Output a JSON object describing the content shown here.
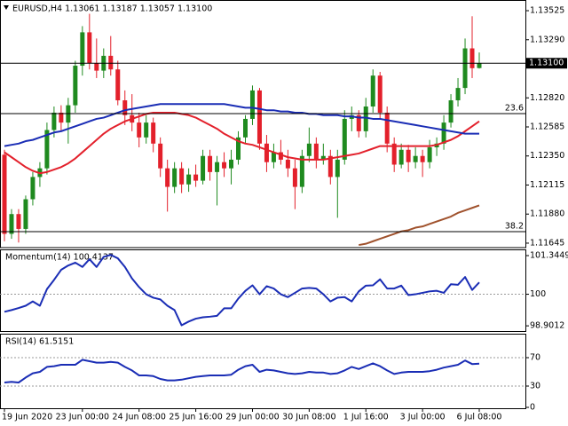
{
  "chart_data": [
    {
      "type": "candlestick",
      "title": "EURUSD,H4  1.13061 1.13187 1.13057 1.13100",
      "categories": [
        "19 Jun 2020",
        null,
        null,
        null,
        null,
        null,
        null,
        null,
        null,
        null,
        null,
        "23 Jun 00:00",
        null,
        null,
        null,
        null,
        null,
        null,
        null,
        "24 Jun 08:00",
        null,
        null,
        null,
        null,
        null,
        null,
        null,
        "25 Jun 16:00",
        null,
        null,
        null,
        null,
        null,
        null,
        null,
        "29 Jun 00:00",
        null,
        null,
        null,
        null,
        null,
        null,
        null,
        "30 Jun 08:00",
        null,
        null,
        null,
        null,
        null,
        null,
        null,
        "1 Jul 16:00",
        null,
        null,
        null,
        null,
        null,
        null,
        null,
        "3 Jul 00:00",
        null,
        null,
        null,
        null,
        null,
        null,
        null,
        "6 Jul 08:00"
      ],
      "open": [
        1.1236,
        1.1172,
        1.1188,
        1.1176,
        1.12,
        1.1218,
        1.1225,
        1.1256,
        1.127,
        1.1262,
        1.1276,
        1.1308,
        1.1335,
        1.131,
        1.1304,
        1.1316,
        1.1305,
        1.128,
        1.1268,
        1.1262,
        1.125,
        1.1262,
        1.1245,
        1.1225,
        1.121,
        1.1225,
        1.1212,
        1.122,
        1.1215,
        1.1235,
        1.1222,
        1.123,
        1.1225,
        1.1232,
        1.125,
        1.1265,
        1.1288,
        1.1245,
        1.123,
        1.1238,
        1.1232,
        1.1225,
        1.121,
        1.1235,
        1.1245,
        1.1232,
        1.1235,
        1.1218,
        1.1232,
        1.1265,
        1.1268,
        1.1255,
        1.1275,
        1.13,
        1.127,
        1.1245,
        1.1228,
        1.124,
        1.123,
        1.1235,
        1.123,
        1.1242,
        1.1245,
        1.1262,
        1.128,
        1.129,
        1.1322,
        1.13061
      ],
      "high": [
        1.124,
        1.1192,
        1.1192,
        1.1203,
        1.1222,
        1.123,
        1.1262,
        1.1275,
        1.1276,
        1.1282,
        1.1312,
        1.134,
        1.135,
        1.133,
        1.1322,
        1.1332,
        1.1312,
        1.1288,
        1.1285,
        1.127,
        1.1268,
        1.1266,
        1.125,
        1.1232,
        1.123,
        1.123,
        1.1225,
        1.1228,
        1.124,
        1.124,
        1.1235,
        1.1238,
        1.124,
        1.1255,
        1.1268,
        1.1292,
        1.129,
        1.1252,
        1.1245,
        1.1248,
        1.124,
        1.1232,
        1.124,
        1.1258,
        1.125,
        1.1245,
        1.124,
        1.124,
        1.1272,
        1.1275,
        1.1272,
        1.1282,
        1.1305,
        1.1303,
        1.1275,
        1.125,
        1.1245,
        1.1244,
        1.1242,
        1.124,
        1.1248,
        1.125,
        1.1268,
        1.1285,
        1.1298,
        1.133,
        1.1348,
        1.13187
      ],
      "low": [
        1.1166,
        1.1168,
        1.1165,
        1.1172,
        1.1195,
        1.121,
        1.122,
        1.125,
        1.1255,
        1.1245,
        1.127,
        1.13,
        1.1305,
        1.1298,
        1.1298,
        1.13,
        1.1276,
        1.126,
        1.1255,
        1.1242,
        1.1245,
        1.1238,
        1.1218,
        1.119,
        1.1205,
        1.1205,
        1.1206,
        1.121,
        1.1212,
        1.1215,
        1.1195,
        1.1218,
        1.1212,
        1.1228,
        1.1245,
        1.126,
        1.124,
        1.1222,
        1.1225,
        1.1228,
        1.1218,
        1.1192,
        1.1205,
        1.123,
        1.1225,
        1.1228,
        1.1212,
        1.1185,
        1.1228,
        1.1255,
        1.125,
        1.125,
        1.127,
        1.1265,
        1.1238,
        1.1222,
        1.1225,
        1.1222,
        1.1225,
        1.1218,
        1.1225,
        1.1235,
        1.124,
        1.1258,
        1.1275,
        1.1285,
        1.1298,
        1.13057
      ],
      "close": [
        1.1172,
        1.1188,
        1.1176,
        1.12,
        1.1218,
        1.1225,
        1.1256,
        1.127,
        1.1262,
        1.1276,
        1.1308,
        1.1335,
        1.131,
        1.1304,
        1.1316,
        1.1305,
        1.128,
        1.1268,
        1.1262,
        1.125,
        1.1262,
        1.1245,
        1.1225,
        1.121,
        1.1225,
        1.1212,
        1.122,
        1.1215,
        1.1235,
        1.1222,
        1.123,
        1.1225,
        1.1232,
        1.125,
        1.1265,
        1.1288,
        1.1245,
        1.123,
        1.1238,
        1.1232,
        1.1225,
        1.121,
        1.1235,
        1.1245,
        1.1232,
        1.1235,
        1.1218,
        1.1232,
        1.1265,
        1.1268,
        1.1255,
        1.1275,
        1.13,
        1.127,
        1.1245,
        1.1228,
        1.124,
        1.123,
        1.1235,
        1.123,
        1.1242,
        1.1245,
        1.1262,
        1.128,
        1.129,
        1.1322,
        1.1306,
        1.131
      ],
      "up_color": "#1f8a1f",
      "down_color": "#e3202b",
      "series": [
        {
          "color": "#e3202b",
          "values": [
            1.1238,
            1.1234,
            1.123,
            1.1226,
            1.1223,
            1.1221,
            1.1222,
            1.1224,
            1.1226,
            1.1229,
            1.1233,
            1.1238,
            1.1243,
            1.1248,
            1.1253,
            1.1257,
            1.126,
            1.1263,
            1.1265,
            1.1267,
            1.1269,
            1.127,
            1.127,
            1.127,
            1.127,
            1.1269,
            1.1268,
            1.1266,
            1.1263,
            1.126,
            1.1257,
            1.1253,
            1.125,
            1.1247,
            1.1245,
            1.1244,
            1.1242,
            1.124,
            1.1238,
            1.1236,
            1.1234,
            1.1233,
            1.1232,
            1.1232,
            1.1232,
            1.1232,
            1.1233,
            1.1234,
            1.1235,
            1.1236,
            1.1237,
            1.1239,
            1.1241,
            1.1243,
            1.1243,
            1.1243,
            1.1243,
            1.1243,
            1.1243,
            1.1243,
            1.1243,
            1.1244,
            1.1246,
            1.1248,
            1.1251,
            1.1255,
            1.1259,
            1.1263
          ]
        },
        {
          "color": "#1a2db5",
          "values": [
            1.1243,
            1.1244,
            1.1245,
            1.1247,
            1.1248,
            1.125,
            1.1252,
            1.1254,
            1.1255,
            1.1257,
            1.1259,
            1.1261,
            1.1263,
            1.1265,
            1.1266,
            1.1268,
            1.127,
            1.1272,
            1.1273,
            1.1274,
            1.1275,
            1.1276,
            1.1277,
            1.1277,
            1.1277,
            1.1277,
            1.1277,
            1.1277,
            1.1277,
            1.1277,
            1.1277,
            1.1277,
            1.1276,
            1.1275,
            1.1274,
            1.1274,
            1.1273,
            1.1272,
            1.1272,
            1.1271,
            1.1271,
            1.127,
            1.127,
            1.1269,
            1.1269,
            1.1268,
            1.1268,
            1.1268,
            1.1267,
            1.1267,
            1.1266,
            1.1266,
            1.1265,
            1.1265,
            1.1264,
            1.1263,
            1.1262,
            1.1261,
            1.126,
            1.1259,
            1.1258,
            1.1257,
            1.1256,
            1.1255,
            1.1254,
            1.1253,
            1.1253,
            1.1253
          ]
        },
        {
          "color": "#a0522d",
          "values": [
            null,
            null,
            null,
            null,
            null,
            null,
            null,
            null,
            null,
            null,
            null,
            null,
            null,
            null,
            null,
            null,
            null,
            null,
            null,
            null,
            null,
            null,
            null,
            null,
            null,
            null,
            null,
            null,
            null,
            null,
            null,
            null,
            null,
            null,
            null,
            null,
            null,
            null,
            null,
            null,
            null,
            null,
            null,
            null,
            null,
            null,
            null,
            null,
            null,
            null,
            1.1163,
            1.1164,
            1.1166,
            1.1168,
            1.117,
            1.1172,
            1.1174,
            1.1175,
            1.1177,
            1.1178,
            1.118,
            1.1182,
            1.1184,
            1.1186,
            1.1189,
            1.1191,
            1.1193,
            1.1195
          ]
        }
      ],
      "ylim": [
        1.11616,
        1.13597
      ],
      "yticks": [
        1.13525,
        {
          "value": 1.1329,
          "label": "1.13290"
        },
        {
          "value": 1.1282,
          "label": "1.12820"
        },
        1.12585,
        {
          "value": 1.1235,
          "label": "1.12350"
        },
        1.12115,
        {
          "value": 1.1188,
          "label": "1.11880"
        },
        1.11645
      ],
      "price_line": {
        "value": 1.131,
        "label": "1.13100"
      },
      "levels": [
        {
          "value": 1.12693,
          "label": "23.6"
        },
        {
          "value": 1.11738,
          "label": "38.2"
        }
      ]
    },
    {
      "type": "line",
      "title": "Momentum(14) 100.4137",
      "color": "#1a2db5",
      "values": [
        99.39,
        99.45,
        99.52,
        99.6,
        99.75,
        99.6,
        100.18,
        100.5,
        100.85,
        101.0,
        101.1,
        100.95,
        101.22,
        100.95,
        101.3,
        101.37,
        101.25,
        100.95,
        100.55,
        100.25,
        100.0,
        99.88,
        99.82,
        99.6,
        99.45,
        98.92,
        99.05,
        99.15,
        99.2,
        99.22,
        99.25,
        99.51,
        99.51,
        99.85,
        100.12,
        100.31,
        100.0,
        100.28,
        100.2,
        100.0,
        99.9,
        100.05,
        100.2,
        100.22,
        100.2,
        100.0,
        99.75,
        99.88,
        99.9,
        99.75,
        100.1,
        100.3,
        100.31,
        100.52,
        100.2,
        100.2,
        100.3,
        99.97,
        100.0,
        100.05,
        100.1,
        100.12,
        100.05,
        100.35,
        100.33,
        100.6,
        100.15,
        100.4137
      ],
      "ylim": [
        98.72,
        101.53
      ],
      "yticks": [
        101.3449,
        100,
        98.9012
      ],
      "levels": [
        100
      ]
    },
    {
      "type": "line",
      "title": "RSI(14) 61.5151",
      "color": "#1a2db5",
      "values": [
        35,
        36,
        35,
        42,
        48,
        50,
        57,
        58,
        60,
        60,
        60,
        67,
        65,
        63,
        63,
        64,
        63,
        57,
        52,
        45,
        45,
        44,
        40,
        38,
        38,
        39,
        41,
        43,
        44,
        45,
        45,
        45,
        46,
        53,
        58,
        60,
        50,
        53,
        52,
        50,
        48,
        47,
        48,
        50,
        49,
        49,
        47,
        48,
        52,
        57,
        54,
        58,
        62,
        58,
        52,
        47,
        49,
        50,
        50,
        50,
        51,
        53,
        56,
        58,
        60,
        66,
        61,
        61.5151
      ],
      "ylim": [
        0,
        102.5
      ],
      "yticks": [
        70,
        30,
        0
      ],
      "levels": [
        70,
        30
      ]
    }
  ]
}
